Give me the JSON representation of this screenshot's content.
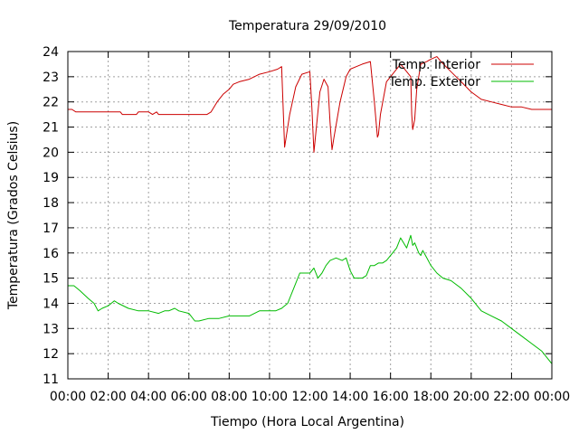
{
  "chart_data": {
    "type": "line",
    "title": "Temperatura 29/09/2010",
    "xlabel": "Tiempo (Hora Local Argentina)",
    "ylabel": "Temperatura (Grados Celsius)",
    "x_unit": "hours",
    "xlim": [
      0,
      24
    ],
    "ylim": [
      11,
      24
    ],
    "yticks": [
      11,
      12,
      13,
      14,
      15,
      16,
      17,
      18,
      19,
      20,
      21,
      22,
      23,
      24
    ],
    "xticks": [
      {
        "value": 0,
        "label": "00:00"
      },
      {
        "value": 2,
        "label": "02:00"
      },
      {
        "value": 4,
        "label": "04:00"
      },
      {
        "value": 6,
        "label": "06:00"
      },
      {
        "value": 8,
        "label": "08:00"
      },
      {
        "value": 10,
        "label": "10:00"
      },
      {
        "value": 12,
        "label": "12:00"
      },
      {
        "value": 14,
        "label": "14:00"
      },
      {
        "value": 16,
        "label": "16:00"
      },
      {
        "value": 18,
        "label": "18:00"
      },
      {
        "value": 20,
        "label": "20:00"
      },
      {
        "value": 22,
        "label": "22:00"
      },
      {
        "value": 24,
        "label": "00:00"
      }
    ],
    "grid": true,
    "legend_position": "top-right",
    "series": [
      {
        "name": "Temp. Interior",
        "color": "#cc0000",
        "x": [
          0,
          0.2,
          0.4,
          1,
          2,
          2.6,
          2.7,
          3.4,
          3.5,
          4,
          4.2,
          4.4,
          4.5,
          4.6,
          5,
          6,
          6.9,
          7.1,
          7.4,
          7.7,
          8,
          8.2,
          8.5,
          9,
          9.5,
          10,
          10.4,
          10.6,
          10.75,
          11.0,
          11.3,
          11.6,
          12.0,
          12.1,
          12.2,
          12.3,
          12.5,
          12.7,
          12.9,
          13.0,
          13.1,
          13.2,
          13.5,
          13.8,
          14.0,
          14.3,
          14.6,
          15.0,
          15.2,
          15.35,
          15.4,
          15.5,
          15.8,
          16.2,
          16.5,
          17.0,
          17.05,
          17.1,
          17.2,
          17.3,
          17.5,
          17.8,
          18.0,
          18.3,
          18.5,
          19.0,
          19.5,
          20.0,
          20.5,
          21.0,
          21.5,
          22.0,
          22.5,
          23.0,
          23.5,
          24.0
        ],
        "values": [
          21.7,
          21.7,
          21.6,
          21.6,
          21.6,
          21.6,
          21.5,
          21.5,
          21.6,
          21.6,
          21.5,
          21.6,
          21.5,
          21.5,
          21.5,
          21.5,
          21.5,
          21.6,
          22.0,
          22.3,
          22.5,
          22.7,
          22.8,
          22.9,
          23.1,
          23.2,
          23.3,
          23.4,
          20.2,
          21.5,
          22.6,
          23.1,
          23.2,
          21.8,
          20.0,
          20.8,
          22.4,
          22.9,
          22.6,
          21.2,
          20.1,
          20.6,
          22.0,
          23.0,
          23.3,
          23.4,
          23.5,
          23.6,
          22.0,
          20.6,
          20.7,
          21.5,
          22.8,
          23.2,
          23.5,
          23.0,
          21.5,
          20.9,
          21.3,
          22.5,
          23.5,
          23.6,
          23.7,
          23.8,
          23.6,
          23.2,
          22.8,
          22.4,
          22.1,
          22.0,
          21.9,
          21.8,
          21.8,
          21.7,
          21.7,
          21.7
        ]
      },
      {
        "name": "Temp. Exterior",
        "color": "#00bb00",
        "x": [
          0,
          0.3,
          0.6,
          1.0,
          1.3,
          1.5,
          1.7,
          2.0,
          2.3,
          2.5,
          3.0,
          3.5,
          4.0,
          4.5,
          4.8,
          5.0,
          5.3,
          5.5,
          6.0,
          6.3,
          6.5,
          7.0,
          7.5,
          8.0,
          8.5,
          9.0,
          9.5,
          10.0,
          10.3,
          10.6,
          10.9,
          11.2,
          11.5,
          11.8,
          12.0,
          12.2,
          12.4,
          12.6,
          12.8,
          13.0,
          13.3,
          13.6,
          13.8,
          14.0,
          14.2,
          14.4,
          14.6,
          14.8,
          15.0,
          15.2,
          15.4,
          15.6,
          15.8,
          16.0,
          16.3,
          16.5,
          16.8,
          17.0,
          17.1,
          17.2,
          17.4,
          17.5,
          17.6,
          17.8,
          18.0,
          18.3,
          18.6,
          19.0,
          19.5,
          20.0,
          20.5,
          21.0,
          21.5,
          22.0,
          22.5,
          23.0,
          23.5,
          24.0
        ],
        "values": [
          14.7,
          14.7,
          14.5,
          14.2,
          14.0,
          13.7,
          13.8,
          13.9,
          14.1,
          14.0,
          13.8,
          13.7,
          13.7,
          13.6,
          13.7,
          13.7,
          13.8,
          13.7,
          13.6,
          13.3,
          13.3,
          13.4,
          13.4,
          13.5,
          13.5,
          13.5,
          13.7,
          13.7,
          13.7,
          13.8,
          14.0,
          14.6,
          15.2,
          15.2,
          15.2,
          15.4,
          15.0,
          15.2,
          15.5,
          15.7,
          15.8,
          15.7,
          15.8,
          15.3,
          15.0,
          15.0,
          15.0,
          15.1,
          15.5,
          15.5,
          15.6,
          15.6,
          15.7,
          15.9,
          16.2,
          16.6,
          16.2,
          16.7,
          16.3,
          16.4,
          16.0,
          15.9,
          16.1,
          15.8,
          15.5,
          15.2,
          15.0,
          14.9,
          14.6,
          14.2,
          13.7,
          13.5,
          13.3,
          13.0,
          12.7,
          12.4,
          12.1,
          11.6
        ]
      }
    ]
  }
}
